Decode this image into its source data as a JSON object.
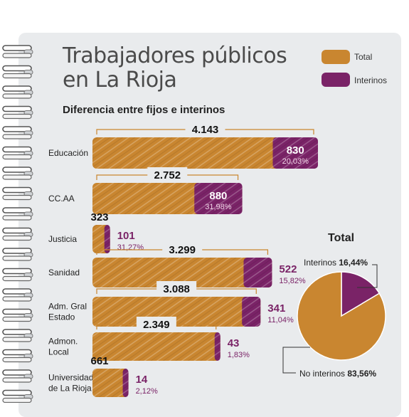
{
  "header": {
    "title_line1": "Trabajadores públicos",
    "title_line2": "en La Rioja",
    "subtitle": "Diferencia entre fijos e interinos"
  },
  "legend": {
    "total_label": "Total",
    "interinos_label": "Interinos"
  },
  "colors": {
    "total": "#c98630",
    "interinos": "#7a2367",
    "background": "#e9ebed",
    "text": "#222222"
  },
  "chart_data": [
    {
      "type": "bar",
      "orientation": "horizontal",
      "categories": [
        "Educación",
        "CC.AA",
        "Justicia",
        "Sanidad",
        "Adm. Gral Estado",
        "Admon. Local",
        "Universidad de La Rioja"
      ],
      "series": [
        {
          "name": "Total",
          "values": [
            4143,
            2752,
            323,
            3299,
            3088,
            2349,
            661
          ]
        },
        {
          "name": "Interinos",
          "values": [
            830,
            880,
            101,
            522,
            341,
            43,
            14
          ]
        }
      ],
      "value_labels": {
        "total": [
          "4.143",
          "2.752",
          "323",
          "3.299",
          "3.088",
          "2.349",
          "661"
        ],
        "interinos": [
          "830",
          "880",
          "101",
          "522",
          "341",
          "43",
          "14"
        ],
        "percent": [
          "20,03%",
          "31,98%",
          "31,27%",
          "15,82%",
          "11,04%",
          "1,83%",
          "2,12%"
        ]
      },
      "category_lines": [
        [
          "Educación"
        ],
        [
          "CC.AA"
        ],
        [
          "Justicia"
        ],
        [
          "Sanidad"
        ],
        [
          "Adm. Gral",
          "Estado"
        ],
        [
          "Admon.",
          "Local"
        ],
        [
          "Universidad",
          "de La Rioja"
        ]
      ],
      "xlim": [
        0,
        4143
      ]
    },
    {
      "type": "pie",
      "title": "Total",
      "slices": [
        {
          "name": "Interinos",
          "value": 16.44,
          "label": "16,44%"
        },
        {
          "name": "No interinos",
          "value": 83.56,
          "label": "83,56%"
        }
      ]
    }
  ]
}
